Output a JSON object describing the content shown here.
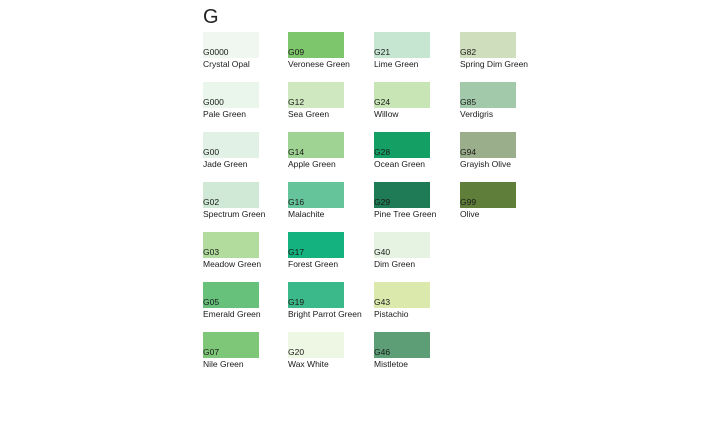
{
  "heading": "G",
  "columns": [
    [
      {
        "code": "G0000",
        "name": "Crystal Opal",
        "color": "#f0f7f1"
      },
      {
        "code": "G000",
        "name": "Pale Green",
        "color": "#eaf5ec"
      },
      {
        "code": "G00",
        "name": "Jade Green",
        "color": "#e1f1e5"
      },
      {
        "code": "G02",
        "name": "Spectrum Green",
        "color": "#cfe9d6"
      },
      {
        "code": "G03",
        "name": "Meadow Green",
        "color": "#b2dc9d"
      },
      {
        "code": "G05",
        "name": "Emerald Green",
        "color": "#67c17a"
      },
      {
        "code": "G07",
        "name": "Nile Green",
        "color": "#7ec678"
      }
    ],
    [
      {
        "code": "G09",
        "name": "Veronese Green",
        "color": "#7ec66b"
      },
      {
        "code": "G12",
        "name": "Sea Green",
        "color": "#cfe8c0"
      },
      {
        "code": "G14",
        "name": "Apple Green",
        "color": "#9ed393"
      },
      {
        "code": "G16",
        "name": "Malachite",
        "color": "#66c49b"
      },
      {
        "code": "G17",
        "name": "Forest Green",
        "color": "#13b27e"
      },
      {
        "code": "G19",
        "name": "Bright Parrot Green",
        "color": "#3cb98b"
      },
      {
        "code": "G20",
        "name": "Wax White",
        "color": "#eef6e4"
      }
    ],
    [
      {
        "code": "G21",
        "name": "Lime Green",
        "color": "#c7e6d2"
      },
      {
        "code": "G24",
        "name": "Willow",
        "color": "#c7e5b5"
      },
      {
        "code": "G28",
        "name": "Ocean Green",
        "color": "#14a065"
      },
      {
        "code": "G29",
        "name": "Pine Tree Green",
        "color": "#1f7a56"
      },
      {
        "code": "G40",
        "name": "Dim Green",
        "color": "#e6f3e3"
      },
      {
        "code": "G43",
        "name": "Pistachio",
        "color": "#dbe9ad"
      },
      {
        "code": "G46",
        "name": "Mistletoe",
        "color": "#5d9e77"
      }
    ],
    [
      {
        "code": "G82",
        "name": "Spring Dim Green",
        "color": "#cfdebd"
      },
      {
        "code": "G85",
        "name": "Verdigris",
        "color": "#a2c9aa"
      },
      {
        "code": "G94",
        "name": "Grayish Olive",
        "color": "#9bae8c"
      },
      {
        "code": "G99",
        "name": "Olive",
        "color": "#5e7e3a"
      }
    ]
  ]
}
